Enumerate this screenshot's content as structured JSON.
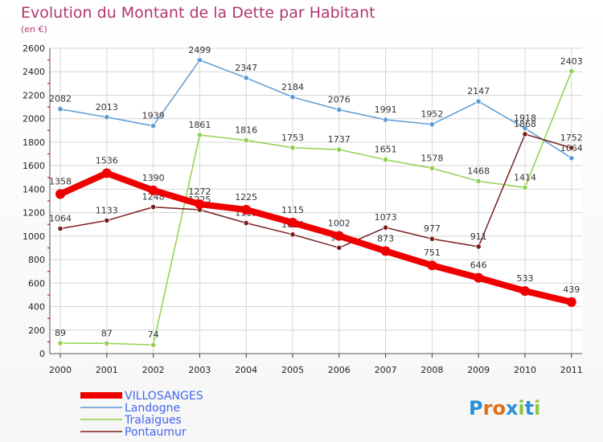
{
  "chart_data": {
    "type": "line",
    "title": "Evolution du Montant de la Dette par Habitant",
    "subtitle": "(en €)",
    "x": [
      "2000",
      "2001",
      "2002",
      "2003",
      "2004",
      "2005",
      "2006",
      "2007",
      "2008",
      "2009",
      "2010",
      "2011"
    ],
    "ylim": [
      0,
      2600
    ],
    "yticks": [
      0,
      200,
      400,
      600,
      800,
      1000,
      1200,
      1400,
      1600,
      1800,
      2000,
      2200,
      2400,
      2600
    ],
    "grid": true,
    "legend_position": "bottom-left",
    "series": [
      {
        "name": "VILLOSANGES",
        "color": "#ee0000",
        "values": [
          1358,
          1536,
          1390,
          1272,
          1225,
          1115,
          1002,
          873,
          751,
          646,
          533,
          439
        ]
      },
      {
        "name": "Landogne",
        "color": "#5b9bd5",
        "values": [
          2082,
          2013,
          1939,
          2499,
          2347,
          2184,
          2076,
          1991,
          1952,
          2147,
          1918,
          1664
        ]
      },
      {
        "name": "Tralaigues",
        "color": "#8fd14f",
        "values": [
          89,
          87,
          74,
          1861,
          1816,
          1753,
          1737,
          1651,
          1578,
          1468,
          1414,
          2403
        ]
      },
      {
        "name": "Pontaumur",
        "color": "#7a1f1f",
        "values": [
          1064,
          1133,
          1248,
          1225,
          1112,
          1014,
          901,
          1073,
          977,
          911,
          1868,
          1752
        ]
      }
    ]
  },
  "logo": {
    "text": "Proxiti"
  }
}
